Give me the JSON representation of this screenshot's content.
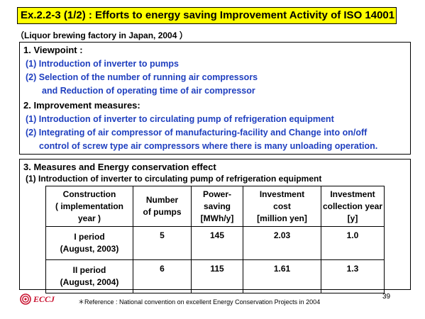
{
  "title": "Ex.2.2-3 (1/2) : Efforts to energy saving Improvement Activity of ISO 14001",
  "subtitle": "（Liquor brewing factory  in Japan, 2004 ）",
  "viewpoint": {
    "heading": "1. Viewpoint :",
    "items": [
      "(1) Introduction of inverter to pumps",
      "(2) Selection of the number of running air compressors",
      "and Reduction of operating time of  air compressor"
    ]
  },
  "improvement": {
    "heading": "2. Improvement  measures:",
    "items": [
      "(1) Introduction of inverter to circulating pump of refrigeration  equipment",
      "(2) Integrating of air compressor of manufacturing-facility  and Change into on/off",
      "control of screw type air compressors where there is many unloading operation."
    ]
  },
  "measures": {
    "heading": "3. Measures and Energy conservation effect",
    "subheading": "(1) Introduction of inverter to circulating pump of refrigeration  equipment",
    "table": {
      "headers": [
        [
          "Construction",
          "( implementation",
          "year )"
        ],
        [
          "Number",
          "of pumps"
        ],
        [
          "Power-",
          "saving",
          "[MWh/y]"
        ],
        [
          "Investment",
          "cost",
          "[million yen]"
        ],
        [
          "Investment",
          "collection year",
          "[y]"
        ]
      ],
      "rows": [
        {
          "period": "I period",
          "date": "(August, 2003)",
          "pumps": "5",
          "saving": "145",
          "cost": "2.03",
          "collection": "1.0"
        },
        {
          "period": "II period",
          "date": "(August, 2004)",
          "pumps": "6",
          "saving": "115",
          "cost": "1.61",
          "collection": "1.3"
        }
      ]
    }
  },
  "footer": {
    "logo_text": "ECCJ",
    "reference": "＊Reference : National convention on excellent Energy Conservation Projects in 2004",
    "page_number": "39"
  },
  "colors": {
    "title_background": "#ffff00",
    "item_text": "#1f3fbf",
    "logo": "#c8102e"
  }
}
